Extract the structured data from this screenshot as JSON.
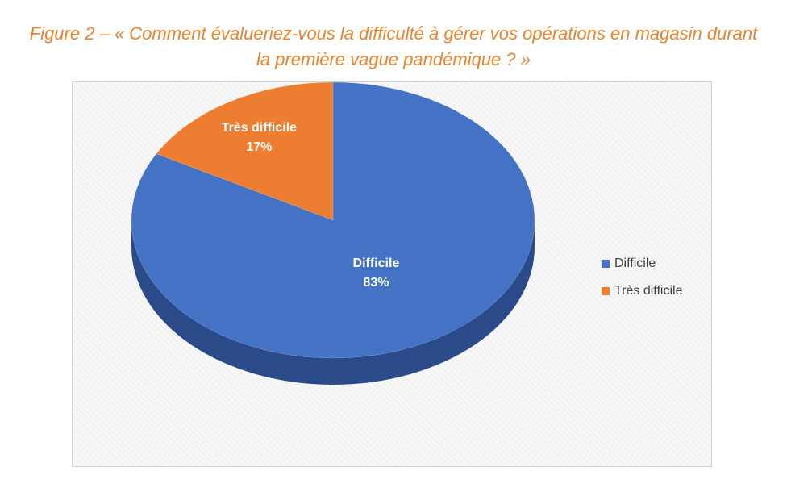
{
  "figure": {
    "title_line1": "Figure 2 – « Comment évalueriez-vous la difficulté à gérer vos opérations en magasin durant",
    "title_line2": "la première vague pandémique ? »"
  },
  "chart_data": {
    "type": "pie",
    "style": "3d",
    "legend_position": "right",
    "slices": [
      {
        "name": "Difficile",
        "value": 83,
        "label": "83%",
        "color": "#4472c4",
        "side_color": "#2a4a8a"
      },
      {
        "name": "Très difficile",
        "value": 17,
        "label": "17%",
        "color": "#ed7d31",
        "side_color": "#b8581c"
      }
    ]
  }
}
